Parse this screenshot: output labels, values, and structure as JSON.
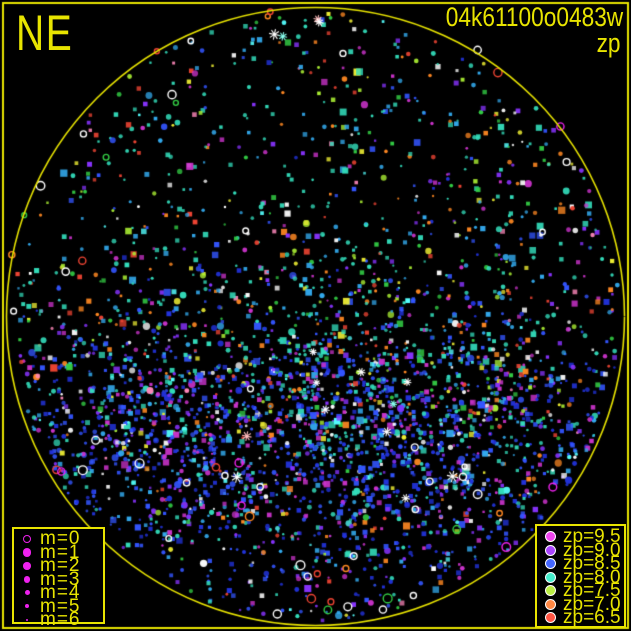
{
  "header": {
    "orientation": "NE",
    "exposure_id": "04k61100o0483w",
    "filter": "zp"
  },
  "colors": {
    "background": "#000000",
    "frame": "#e8e400",
    "text": "#e8e400"
  },
  "chart_data": {
    "type": "scatter",
    "title": "04k61100o0483w",
    "orientation_label": "NE",
    "color_scale_label": "zp",
    "description": "All-sky circular star field plot; ~3400 detected sources inside a yellow circular field of view on black. Symbol color encodes zp (6.5 red to 9.5 magenta), symbol size encodes magnitude m (0 large open to 6 tiny). Faint blue/deep-blue sources concentrate in a dense horizontal band across the lower-middle of the field; upper field is sparser with aqua/green/orange mix. Open rings (m=0) cluster near the bottom; a few white asterisk symbols sit in the dense band and at the top rim.",
    "field": {
      "cx": 315.5,
      "cy": 316.5,
      "r": 309,
      "point_region_r": 304
    },
    "seed": 483,
    "n_points": 3400,
    "band": {
      "fraction": 0.6,
      "y_mean": 420,
      "y_sigma": 74
    },
    "color_blend": {
      "y_start": 240,
      "y_span": 210
    },
    "palette": [
      {
        "hex": "#33ddbb",
        "top": 0.26,
        "band": 0.12
      },
      {
        "hex": "#33aaee",
        "top": 0.13,
        "band": 0.1
      },
      {
        "hex": "#3355ff",
        "top": 0.07,
        "band": 0.24
      },
      {
        "hex": "#2233dd",
        "top": 0.02,
        "band": 0.2
      },
      {
        "hex": "#cc33cc",
        "top": 0.06,
        "band": 0.1
      },
      {
        "hex": "#8833ff",
        "top": 0.05,
        "band": 0.08
      },
      {
        "hex": "#33cc44",
        "top": 0.09,
        "band": 0.02
      },
      {
        "hex": "#aaee33",
        "top": 0.06,
        "band": 0.005
      },
      {
        "hex": "#eeee33",
        "top": 0.05,
        "band": 0.01
      },
      {
        "hex": "#ff8822",
        "top": 0.08,
        "band": 0.02
      },
      {
        "hex": "#ee4433",
        "top": 0.05,
        "band": 0.015
      },
      {
        "hex": "#ffffff",
        "top": 0.04,
        "band": 0.05
      },
      {
        "hex": "#ff88bb",
        "top": 0.02,
        "band": 0.005
      },
      {
        "hex": "#55ffff",
        "top": 0.02,
        "band": 0.02
      }
    ],
    "size": {
      "min": 1.1,
      "range": 1.4,
      "big_chance": 0.1,
      "big_add": 1.2
    },
    "rings": {
      "count": 58,
      "bottom_fraction": 0.55,
      "uniform_fraction": 0.3,
      "bottom_y_min": 430,
      "bottom_y_range": 185,
      "colors": [
        {
          "hex": "#ffffff",
          "w": 0.55
        },
        {
          "hex": "#ee4433",
          "w": 0.18
        },
        {
          "hex": "#ff8822",
          "w": 0.12
        },
        {
          "hex": "#33cc44",
          "w": 0.08
        },
        {
          "hex": "#ee22ee",
          "w": 0.07
        }
      ]
    },
    "asterisks": {
      "band_count": 11,
      "top_count": 4,
      "band": {
        "x_mean": 330,
        "x_sigma": 85,
        "y_mean": 418,
        "y_sigma": 38
      },
      "top": {
        "x_min": 225,
        "x_range": 120,
        "y_min": 14,
        "y_range": 30
      },
      "colors": [
        "#ffffff",
        "#88ffee",
        "#ffbbbb"
      ]
    },
    "legends": {
      "magnitude": {
        "symbol_color": "#ee22ee",
        "items": [
          {
            "label": "m=0",
            "filled": false,
            "size": 8.5
          },
          {
            "label": "m=1",
            "filled": true,
            "size": 8.5
          },
          {
            "label": "m=2",
            "filled": true,
            "size": 7.5
          },
          {
            "label": "m=3",
            "filled": true,
            "size": 6.5
          },
          {
            "label": "m=4",
            "filled": true,
            "size": 5
          },
          {
            "label": "m=5",
            "filled": true,
            "size": 4
          },
          {
            "label": "m=6",
            "filled": true,
            "size": 2.5
          }
        ]
      },
      "zeropoint": {
        "items": [
          {
            "label": "zp=9.5",
            "color": "#ee44ee"
          },
          {
            "label": "zp=9.0",
            "color": "#aa44ff"
          },
          {
            "label": "zp=8.5",
            "color": "#4466ff"
          },
          {
            "label": "zp=8.0",
            "color": "#44eecc"
          },
          {
            "label": "zp=7.5",
            "color": "#bbee44"
          },
          {
            "label": "zp=7.0",
            "color": "#ff8844"
          },
          {
            "label": "zp=6.5",
            "color": "#ff5544"
          }
        ]
      }
    }
  }
}
